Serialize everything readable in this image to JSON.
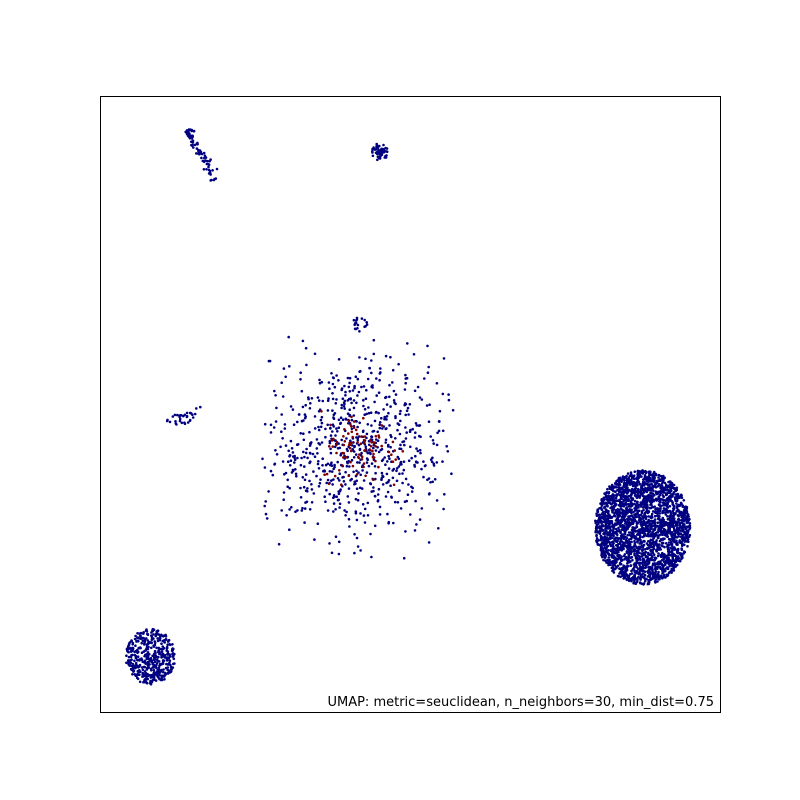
{
  "chart_data": {
    "type": "scatter",
    "title": "",
    "xlabel": "",
    "ylabel": "",
    "annotation": "UMAP: metric=seuclidean, n_neighbors=30, min_dist=0.75",
    "axes": {
      "xlim": [
        0,
        1
      ],
      "ylim": [
        0,
        1
      ],
      "ticks": false,
      "grid": false,
      "frame": true
    },
    "colors": {
      "primary": "#000080",
      "secondary": "#800000",
      "frame": "#000000"
    },
    "clusters": [
      {
        "name": "top-left-streak",
        "color": "#000080",
        "kind": "streak",
        "x0": 0.14,
        "y0": 0.945,
        "x1": 0.185,
        "y1": 0.865,
        "n": 60,
        "spread": 0.004
      },
      {
        "name": "top-left-streak-head",
        "color": "#000080",
        "kind": "blob",
        "cx": 0.144,
        "cy": 0.94,
        "rx": 0.008,
        "ry": 0.008,
        "n": 25
      },
      {
        "name": "top-center-blob",
        "color": "#000080",
        "kind": "blob",
        "cx": 0.451,
        "cy": 0.911,
        "rx": 0.014,
        "ry": 0.014,
        "n": 55
      },
      {
        "name": "small-left-cluster",
        "color": "#000080",
        "kind": "blob",
        "cx": 0.125,
        "cy": 0.475,
        "rx": 0.02,
        "ry": 0.01,
        "n": 25
      },
      {
        "name": "small-left-tail",
        "color": "#000080",
        "kind": "streak",
        "x0": 0.14,
        "y0": 0.48,
        "x1": 0.165,
        "y1": 0.5,
        "n": 8,
        "spread": 0.003
      },
      {
        "name": "center-diffuse",
        "color": "#000080",
        "kind": "diffuse",
        "cx": 0.41,
        "cy": 0.43,
        "rx": 0.16,
        "ry": 0.18,
        "n": 750
      },
      {
        "name": "center-diffuse-red",
        "color": "#800000",
        "kind": "diffuse",
        "cx": 0.42,
        "cy": 0.43,
        "rx": 0.07,
        "ry": 0.07,
        "n": 90
      },
      {
        "name": "center-top-sub",
        "color": "#000080",
        "kind": "blob",
        "cx": 0.418,
        "cy": 0.63,
        "rx": 0.012,
        "ry": 0.012,
        "n": 18
      },
      {
        "name": "right-dense-blob",
        "color": "#000080",
        "kind": "blob",
        "cx": 0.875,
        "cy": 0.3,
        "rx": 0.077,
        "ry": 0.093,
        "n": 2600
      },
      {
        "name": "bottom-left-blob",
        "color": "#000080",
        "kind": "blob",
        "cx": 0.08,
        "cy": 0.09,
        "rx": 0.04,
        "ry": 0.045,
        "n": 450
      }
    ]
  }
}
